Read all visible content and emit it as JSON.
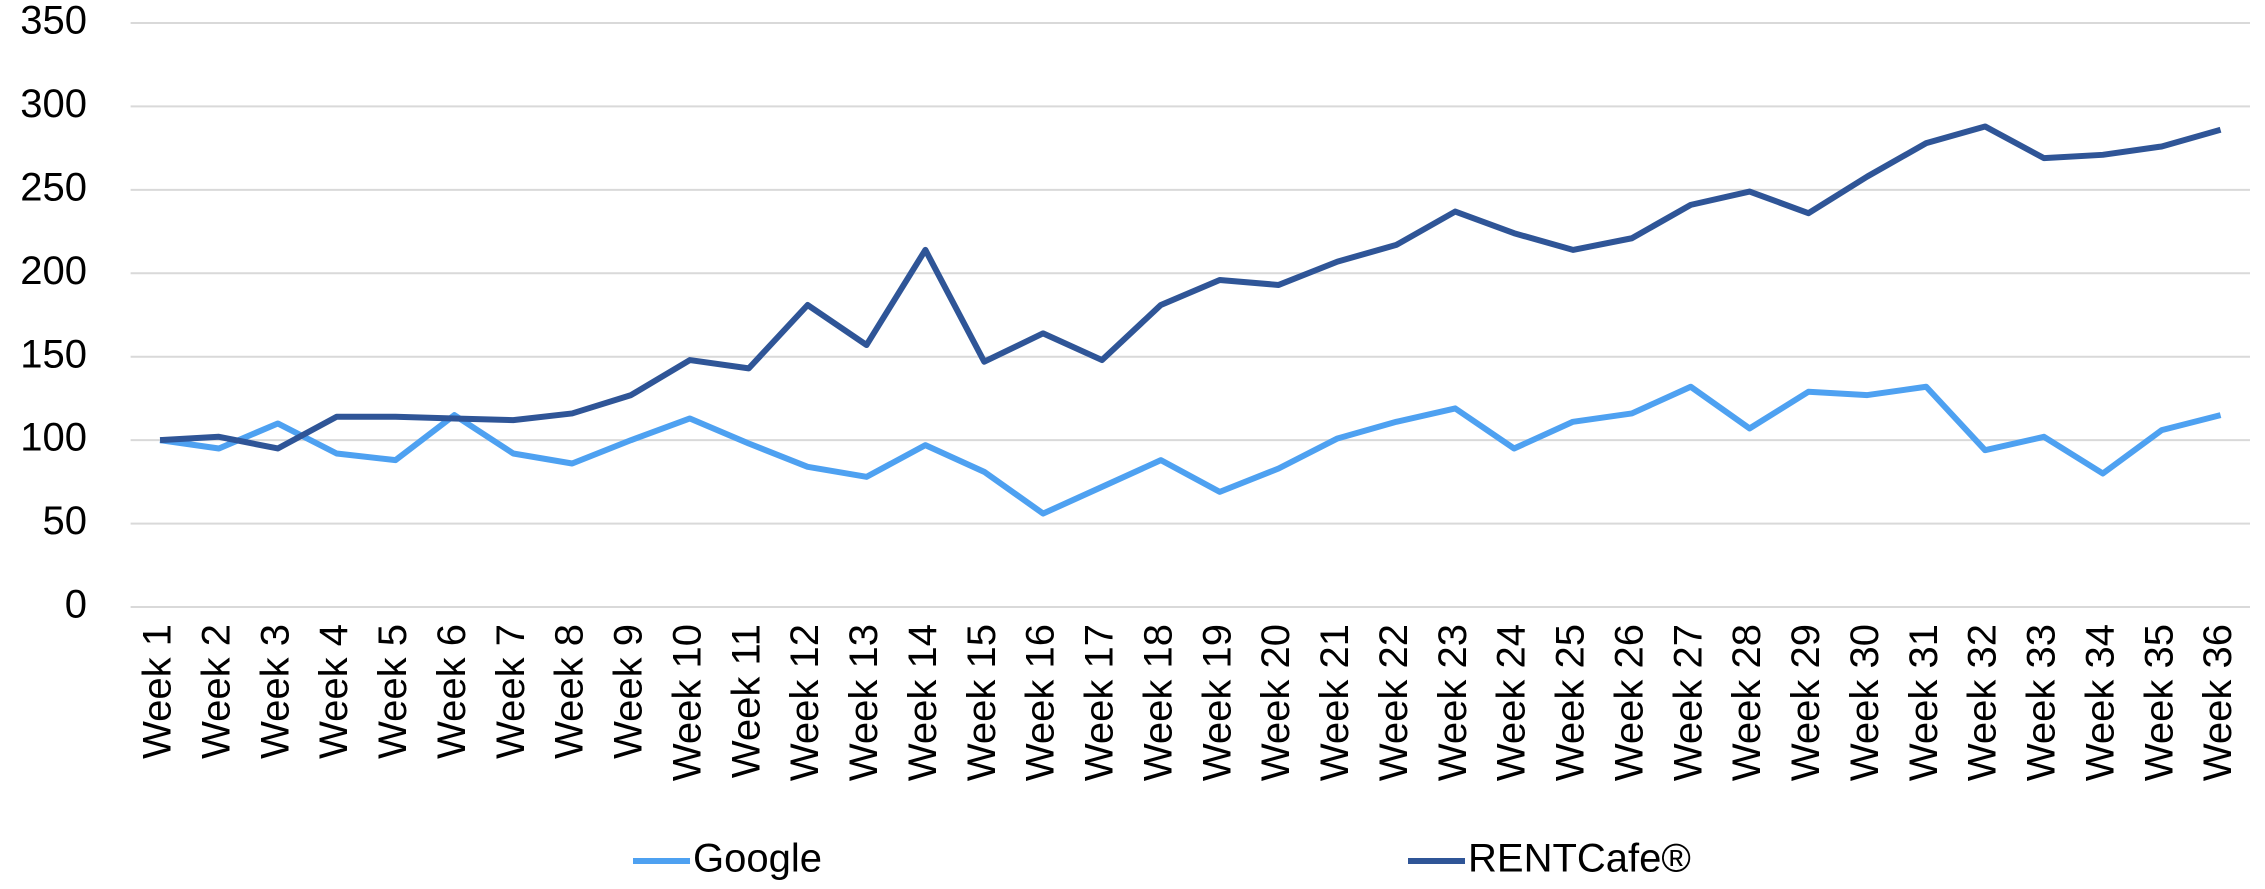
{
  "chart_data": {
    "type": "line",
    "categories": [
      "Week 1",
      "Week 2",
      "Week 3",
      "Week 4",
      "Week 5",
      "Week 6",
      "Week 7",
      "Week 8",
      "Week 9",
      "Week 10",
      "Week 11",
      "Week 12",
      "Week 13",
      "Week 14",
      "Week 15",
      "Week 16",
      "Week 17",
      "Week 18",
      "Week 19",
      "Week 20",
      "Week 21",
      "Week 22",
      "Week 23",
      "Week 24",
      "Week 25",
      "Week 26",
      "Week 27",
      "Week 28",
      "Week 29",
      "Week 30",
      "Week 31",
      "Week 32",
      "Week 33",
      "Week 34",
      "Week 35",
      "Week 36"
    ],
    "series": [
      {
        "name": "Google",
        "color": "#4ea1f1",
        "values": [
          100,
          95,
          110,
          92,
          88,
          115,
          92,
          86,
          100,
          113,
          98,
          84,
          78,
          97,
          81,
          56,
          72,
          88,
          69,
          83,
          101,
          111,
          119,
          95,
          111,
          116,
          132,
          107,
          129,
          127,
          132,
          94,
          102,
          80,
          106,
          115
        ]
      },
      {
        "name": "RENTCafe®",
        "color": "#2f5597",
        "values": [
          100,
          102,
          95,
          114,
          114,
          113,
          112,
          116,
          127,
          148,
          143,
          181,
          157,
          214,
          147,
          164,
          148,
          181,
          196,
          193,
          207,
          217,
          237,
          224,
          214,
          221,
          241,
          249,
          236,
          258,
          278,
          288,
          269,
          271,
          276,
          286
        ]
      }
    ],
    "ylim": [
      0,
      350
    ],
    "yticks": [
      0,
      50,
      100,
      150,
      200,
      250,
      300,
      350
    ],
    "grid": true,
    "legend": "bottom"
  }
}
